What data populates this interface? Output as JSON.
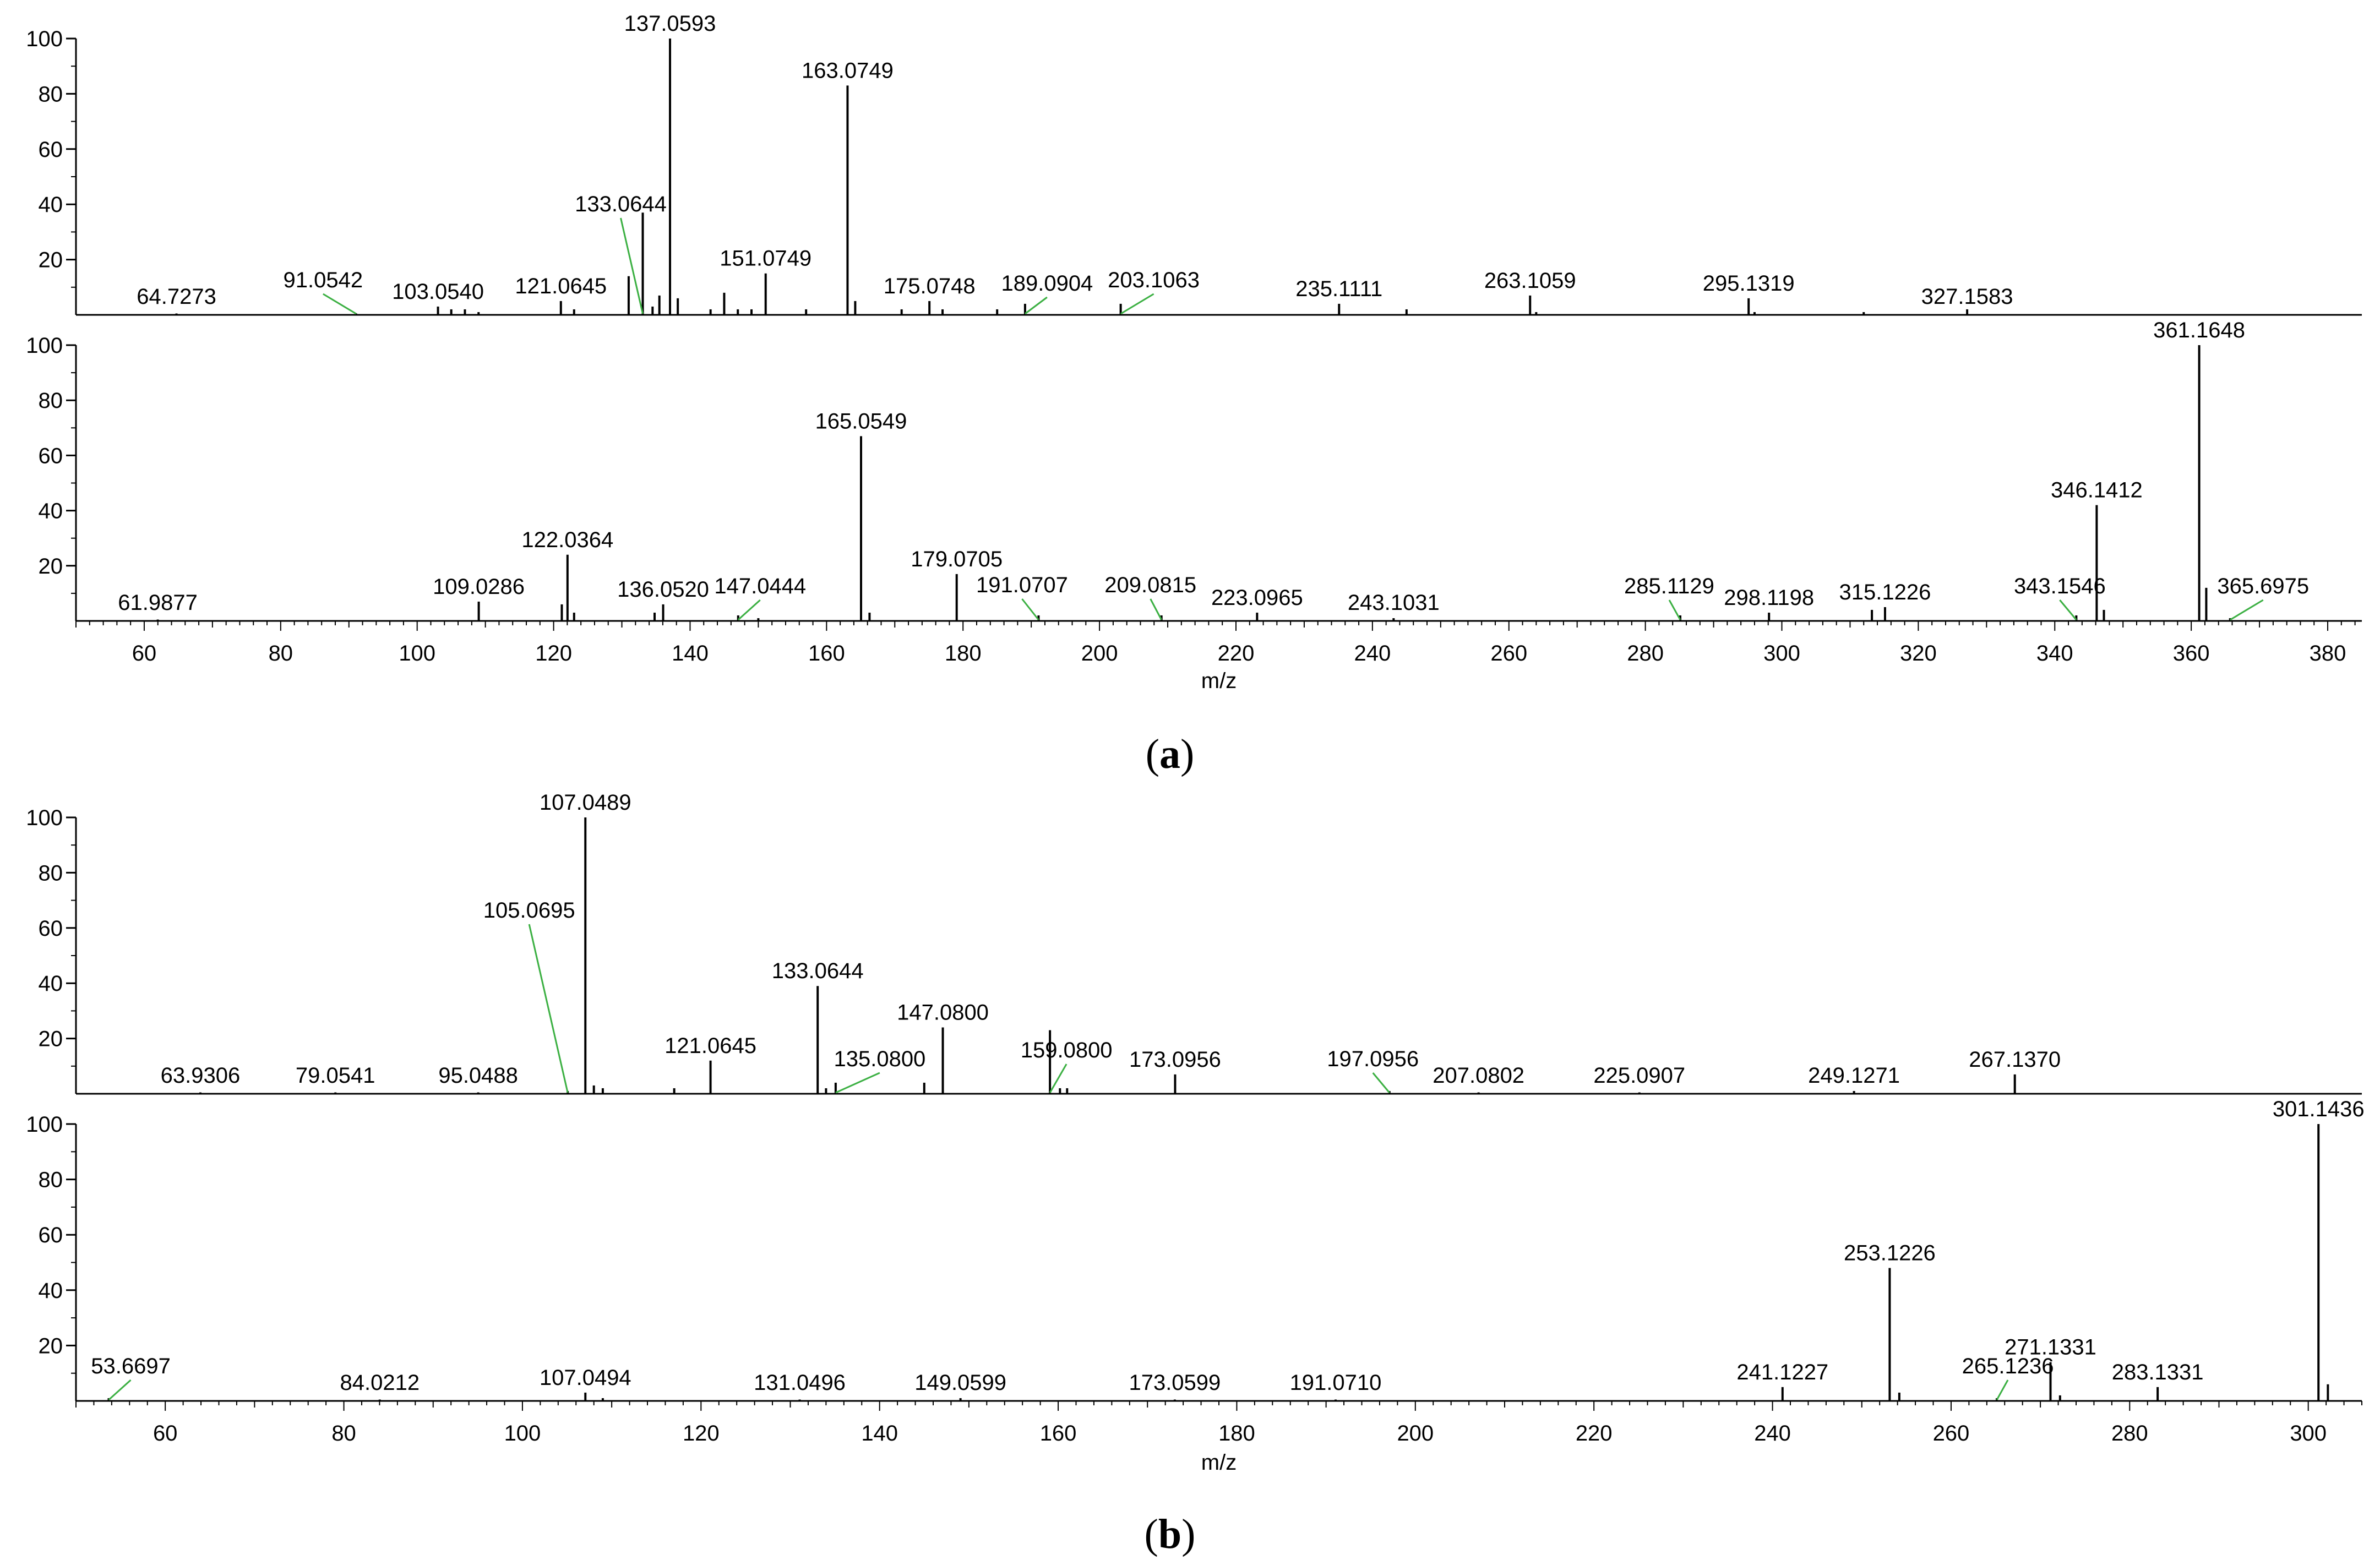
{
  "figure": {
    "caption_a": "(a)",
    "caption_b": "(b)",
    "caption_a_letter": "a",
    "caption_b_letter": "b"
  },
  "colors": {
    "axis": "#000000",
    "peak": "#000000",
    "leader": "#3cb043",
    "background": "#ffffff"
  },
  "chart_data": [
    {
      "type": "bar",
      "panel": "a",
      "subplot": "top",
      "title": "",
      "xlabel": "",
      "ylabel": "",
      "xlim": [
        50,
        385
      ],
      "ylim": [
        0,
        100
      ],
      "yticks": [
        "20",
        "40",
        "60",
        "80",
        "100"
      ],
      "peaks": [
        {
          "mz": 64.7273,
          "intensity": 0.5,
          "label": "64.7273"
        },
        {
          "mz": 91.0542,
          "intensity": 0.5,
          "label": "91.0542",
          "leader": true
        },
        {
          "mz": 103.054,
          "intensity": 3,
          "label": "103.0540"
        },
        {
          "mz": 105,
          "intensity": 2
        },
        {
          "mz": 107,
          "intensity": 2
        },
        {
          "mz": 109,
          "intensity": 1
        },
        {
          "mz": 121.0645,
          "intensity": 5,
          "label": "121.0645"
        },
        {
          "mz": 123,
          "intensity": 2
        },
        {
          "mz": 131,
          "intensity": 14
        },
        {
          "mz": 133.0644,
          "intensity": 37,
          "label": "133.0644",
          "leader": true
        },
        {
          "mz": 134.5,
          "intensity": 3
        },
        {
          "mz": 135.5,
          "intensity": 7
        },
        {
          "mz": 137.0593,
          "intensity": 100,
          "label": "137.0593"
        },
        {
          "mz": 138.2,
          "intensity": 6
        },
        {
          "mz": 143,
          "intensity": 2
        },
        {
          "mz": 145,
          "intensity": 8
        },
        {
          "mz": 147,
          "intensity": 2
        },
        {
          "mz": 149,
          "intensity": 2
        },
        {
          "mz": 151.0749,
          "intensity": 15,
          "label": "151.0749"
        },
        {
          "mz": 157,
          "intensity": 2
        },
        {
          "mz": 163.0749,
          "intensity": 83,
          "label": "163.0749"
        },
        {
          "mz": 164.2,
          "intensity": 5
        },
        {
          "mz": 171,
          "intensity": 2
        },
        {
          "mz": 175.0748,
          "intensity": 5,
          "label": "175.0748"
        },
        {
          "mz": 177,
          "intensity": 2
        },
        {
          "mz": 185,
          "intensity": 2
        },
        {
          "mz": 189.0904,
          "intensity": 4,
          "label": "189.0904",
          "leader": true
        },
        {
          "mz": 203.1063,
          "intensity": 4,
          "label": "203.1063",
          "leader": true
        },
        {
          "mz": 235.1111,
          "intensity": 4,
          "label": "235.1111"
        },
        {
          "mz": 245,
          "intensity": 2
        },
        {
          "mz": 263.1059,
          "intensity": 7,
          "label": "263.1059"
        },
        {
          "mz": 264,
          "intensity": 1
        },
        {
          "mz": 295.1319,
          "intensity": 6,
          "label": "295.1319"
        },
        {
          "mz": 296,
          "intensity": 1
        },
        {
          "mz": 312,
          "intensity": 1
        },
        {
          "mz": 327.1583,
          "intensity": 2,
          "label": "327.1583"
        }
      ]
    },
    {
      "type": "bar",
      "panel": "a",
      "subplot": "bottom",
      "title": "",
      "xlabel": "m/z",
      "ylabel": "",
      "xlim": [
        50,
        385
      ],
      "ylim": [
        0,
        100
      ],
      "xticks": [
        "60",
        "80",
        "100",
        "120",
        "140",
        "160",
        "180",
        "200",
        "220",
        "240",
        "260",
        "280",
        "300",
        "320",
        "340",
        "360",
        "380"
      ],
      "yticks": [
        "20",
        "40",
        "60",
        "80",
        "100"
      ],
      "peaks": [
        {
          "mz": 61.9877,
          "intensity": 0.5,
          "label": "61.9877"
        },
        {
          "mz": 109.0286,
          "intensity": 7,
          "label": "109.0286"
        },
        {
          "mz": 121.2,
          "intensity": 6
        },
        {
          "mz": 122.0364,
          "intensity": 24,
          "label": "122.0364"
        },
        {
          "mz": 123,
          "intensity": 3
        },
        {
          "mz": 134.8,
          "intensity": 3
        },
        {
          "mz": 136.052,
          "intensity": 6,
          "label": "136.0520"
        },
        {
          "mz": 147.0444,
          "intensity": 2,
          "label": "147.0444",
          "leader": true
        },
        {
          "mz": 150,
          "intensity": 1
        },
        {
          "mz": 165.0549,
          "intensity": 67,
          "label": "165.0549"
        },
        {
          "mz": 166.3,
          "intensity": 3
        },
        {
          "mz": 179.0705,
          "intensity": 17,
          "label": "179.0705"
        },
        {
          "mz": 191.0707,
          "intensity": 2,
          "label": "191.0707",
          "leader": true
        },
        {
          "mz": 209.0815,
          "intensity": 2,
          "label": "209.0815",
          "leader": true
        },
        {
          "mz": 223.0965,
          "intensity": 3,
          "label": "223.0965"
        },
        {
          "mz": 243.1031,
          "intensity": 1,
          "label": "243.1031"
        },
        {
          "mz": 285.1129,
          "intensity": 2,
          "label": "285.1129",
          "leader": true
        },
        {
          "mz": 298.1198,
          "intensity": 3,
          "label": "298.1198"
        },
        {
          "mz": 313.2,
          "intensity": 4
        },
        {
          "mz": 315.1226,
          "intensity": 5,
          "label": "315.1226"
        },
        {
          "mz": 343.1546,
          "intensity": 2,
          "label": "343.1546",
          "leader": true
        },
        {
          "mz": 346.1412,
          "intensity": 42,
          "label": "346.1412"
        },
        {
          "mz": 347.2,
          "intensity": 4
        },
        {
          "mz": 361.1648,
          "intensity": 100,
          "label": "361.1648"
        },
        {
          "mz": 362.2,
          "intensity": 12
        },
        {
          "mz": 365.6975,
          "intensity": 1,
          "label": "365.6975",
          "leader": true
        }
      ]
    },
    {
      "type": "bar",
      "panel": "b",
      "subplot": "top",
      "title": "",
      "xlabel": "",
      "ylabel": "",
      "xlim": [
        50,
        306
      ],
      "ylim": [
        0,
        100
      ],
      "yticks": [
        "20",
        "40",
        "60",
        "80",
        "100"
      ],
      "peaks": [
        {
          "mz": 63.9306,
          "intensity": 0.5,
          "label": "63.9306"
        },
        {
          "mz": 79.0541,
          "intensity": 0.5,
          "label": "79.0541"
        },
        {
          "mz": 95.0488,
          "intensity": 0.5,
          "label": "95.0488"
        },
        {
          "mz": 105.0695,
          "intensity": 1,
          "label": "105.0695",
          "leader": true
        },
        {
          "mz": 107.0489,
          "intensity": 100,
          "label": "107.0489"
        },
        {
          "mz": 108,
          "intensity": 3
        },
        {
          "mz": 109,
          "intensity": 2
        },
        {
          "mz": 117,
          "intensity": 2
        },
        {
          "mz": 121.0645,
          "intensity": 12,
          "label": "121.0645"
        },
        {
          "mz": 133.0644,
          "intensity": 39,
          "label": "133.0644"
        },
        {
          "mz": 134,
          "intensity": 2
        },
        {
          "mz": 135.08,
          "intensity": 4,
          "label": "135.0800",
          "leader": true
        },
        {
          "mz": 145,
          "intensity": 4
        },
        {
          "mz": 147.08,
          "intensity": 24,
          "label": "147.0800"
        },
        {
          "mz": 159.08,
          "intensity": 23,
          "label": "159.0800",
          "leader": true
        },
        {
          "mz": 160.2,
          "intensity": 2
        },
        {
          "mz": 161,
          "intensity": 2
        },
        {
          "mz": 173.0956,
          "intensity": 7,
          "label": "173.0956"
        },
        {
          "mz": 197.0956,
          "intensity": 1,
          "label": "197.0956",
          "leader": true
        },
        {
          "mz": 207.0802,
          "intensity": 0.5,
          "label": "207.0802"
        },
        {
          "mz": 225.0907,
          "intensity": 0.5,
          "label": "225.0907"
        },
        {
          "mz": 249.1271,
          "intensity": 1,
          "label": "249.1271"
        },
        {
          "mz": 267.137,
          "intensity": 7,
          "label": "267.1370"
        }
      ]
    },
    {
      "type": "bar",
      "panel": "b",
      "subplot": "bottom",
      "title": "",
      "xlabel": "m/z",
      "ylabel": "",
      "xlim": [
        50,
        306
      ],
      "ylim": [
        0,
        100
      ],
      "xticks": [
        "60",
        "80",
        "100",
        "120",
        "140",
        "160",
        "180",
        "200",
        "220",
        "240",
        "260",
        "280",
        "300"
      ],
      "yticks": [
        "20",
        "40",
        "60",
        "80",
        "100"
      ],
      "peaks": [
        {
          "mz": 53.6697,
          "intensity": 1,
          "label": "53.6697",
          "leader": true
        },
        {
          "mz": 84.0212,
          "intensity": 0.5,
          "label": "84.0212"
        },
        {
          "mz": 107.0494,
          "intensity": 3,
          "label": "107.0494"
        },
        {
          "mz": 109,
          "intensity": 1
        },
        {
          "mz": 131.0496,
          "intensity": 0.5,
          "label": "131.0496"
        },
        {
          "mz": 149.0599,
          "intensity": 1,
          "label": "149.0599"
        },
        {
          "mz": 173.0599,
          "intensity": 0.5,
          "label": "173.0599"
        },
        {
          "mz": 191.071,
          "intensity": 0.5,
          "label": "191.0710"
        },
        {
          "mz": 241.1227,
          "intensity": 5,
          "label": "241.1227"
        },
        {
          "mz": 253.1226,
          "intensity": 48,
          "label": "253.1226"
        },
        {
          "mz": 254.2,
          "intensity": 3
        },
        {
          "mz": 265.1236,
          "intensity": 1,
          "label": "265.1236",
          "leader": true
        },
        {
          "mz": 271.1331,
          "intensity": 14,
          "label": "271.1331"
        },
        {
          "mz": 272.2,
          "intensity": 2
        },
        {
          "mz": 283.1331,
          "intensity": 5,
          "label": "283.1331"
        },
        {
          "mz": 301.1436,
          "intensity": 100,
          "label": "301.1436"
        },
        {
          "mz": 302.2,
          "intensity": 6
        }
      ]
    }
  ]
}
